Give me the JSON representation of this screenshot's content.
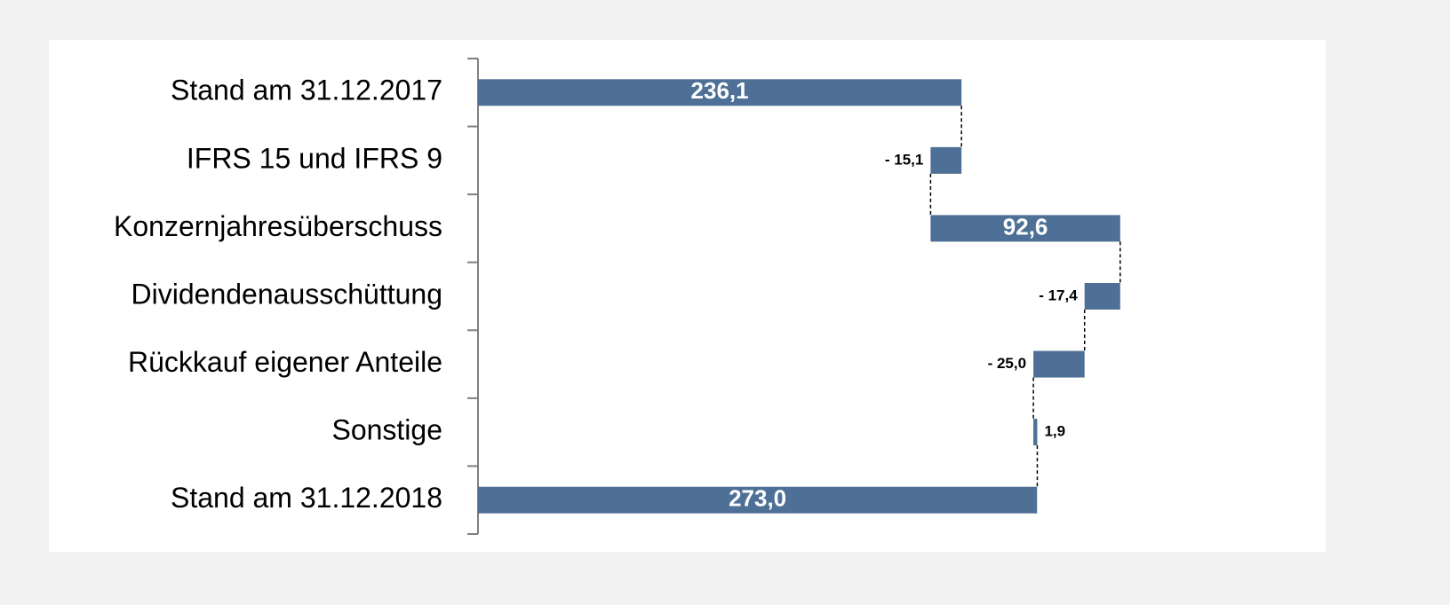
{
  "chart_data": {
    "type": "waterfall",
    "categories": [
      "Stand am 31.12.2017",
      "IFRS 15 und IFRS 9",
      "Konzernjahresüberschuss",
      "Dividendenausschüttung",
      "Rückkauf eigener Anteile",
      "Sonstige",
      "Stand am 31.12.2018"
    ],
    "values": [
      236.1,
      -15.1,
      92.6,
      -17.4,
      -25.0,
      1.9,
      273.0
    ],
    "value_labels": [
      "236,1",
      "- 15,1",
      "92,6",
      "- 17,4",
      "- 25,0",
      "1,9",
      "273,0"
    ],
    "measure": [
      "absolute",
      "relative",
      "relative",
      "relative",
      "relative",
      "relative",
      "absolute"
    ],
    "color": "#4e7096",
    "xlim": [
      0,
      410
    ]
  }
}
